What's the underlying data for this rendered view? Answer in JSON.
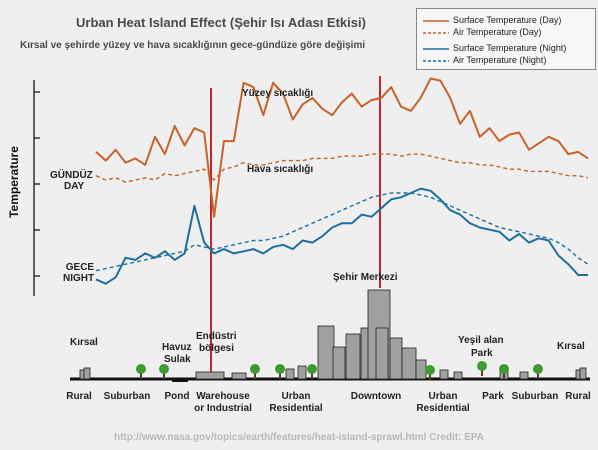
{
  "title": "Urban Heat Island Effect (Şehir Isı Adası Etkisi)",
  "subtitle": "Kırsal ve şehirde yüzey ve hava sıcaklığının gece-gündüze göre değişimi",
  "ylabel": "Temperature",
  "day_label": {
    "tr": "GÜNDÜZ",
    "en": "DAY"
  },
  "night_label": {
    "tr": "GECE",
    "en": "NIGHT"
  },
  "legend": [
    {
      "label": "Surface Temperature (Day)",
      "color": "#c8622a",
      "dash": false
    },
    {
      "label": "Air Temperature  (Day)",
      "color": "#c8622a",
      "dash": true
    },
    {
      "label": "Surface Temperature (Night)",
      "color": "#1f6e9e",
      "dash": false
    },
    {
      "label": "Air Temperature (Night)",
      "color": "#1f6e9e",
      "dash": true
    }
  ],
  "annotations": {
    "surface_day": "Yüzey sıcaklığı",
    "air_day": "Hava sıcaklığı",
    "downtown_tr": "Şehir Merkezi",
    "industrial_tr": [
      "Endüstri",
      "bölgesi"
    ],
    "pond_tr": [
      "Havuz",
      "Sulak"
    ],
    "rural_left_tr": "Kırsal",
    "rural_right_tr": "Kırsal",
    "park_tr": [
      "Yeşil alan",
      "Park"
    ]
  },
  "zones": [
    {
      "lines": [
        "Rural"
      ]
    },
    {
      "lines": [
        "Suburban"
      ]
    },
    {
      "lines": [
        "Pond"
      ]
    },
    {
      "lines": [
        "Warehouse",
        "or Industrial"
      ]
    },
    {
      "lines": [
        "Urban",
        "Residential"
      ]
    },
    {
      "lines": [
        "Downtown"
      ]
    },
    {
      "lines": [
        "Urban",
        "Residential"
      ]
    },
    {
      "lines": [
        "Park"
      ]
    },
    {
      "lines": [
        "Suburban"
      ]
    },
    {
      "lines": [
        "Rural"
      ]
    }
  ],
  "credit": "http://www.nasa.gov/topics/earth/features/heat-island-sprawl.html Credit: EPA",
  "colors": {
    "day": "#c8622a",
    "night": "#1f6e9e",
    "marker": "#c0282a",
    "buildings": "#a0a0a0"
  },
  "chart_data": {
    "type": "line",
    "title": "Urban Heat Island Effect (Şehir Isı Adası Etkisi)",
    "ylabel": "Temperature",
    "xlabel": "",
    "x_categories": [
      "Rural",
      "Suburban",
      "Pond",
      "Warehouse or Industrial",
      "Urban Residential",
      "Downtown",
      "Urban Residential",
      "Park",
      "Suburban",
      "Rural"
    ],
    "x": [
      0,
      2,
      4,
      6,
      8,
      10,
      12,
      14,
      16,
      18,
      20,
      22,
      24,
      26,
      28,
      30,
      32,
      34,
      36,
      38,
      40,
      42,
      44,
      46,
      48,
      50,
      52,
      54,
      56,
      58,
      60,
      62,
      64,
      66,
      68,
      70,
      72,
      74,
      76,
      78,
      80,
      82,
      84,
      86,
      88,
      90,
      92,
      94,
      96,
      98,
      100
    ],
    "ylim": [
      0,
      100
    ],
    "series": [
      {
        "name": "Surface Temperature (Day)",
        "values": [
          63,
          59,
          64,
          58,
          60,
          57,
          70,
          62,
          75,
          66,
          74,
          72,
          33,
          68,
          68,
          95,
          93,
          80,
          95,
          90,
          78,
          85,
          88,
          83,
          80,
          86,
          90,
          84,
          87,
          88,
          93,
          84,
          82,
          88,
          97,
          96,
          88,
          76,
          82,
          70,
          74,
          68,
          71,
          72,
          64,
          67,
          70,
          68,
          62,
          63,
          60
        ]
      },
      {
        "name": "Air Temperature  (Day)",
        "values": [
          52,
          50,
          51,
          49,
          50,
          51,
          50,
          53,
          52,
          53,
          54,
          55,
          50,
          55,
          56,
          58,
          57,
          57,
          58,
          59,
          59,
          59,
          60,
          60,
          60,
          61,
          61,
          61,
          62,
          62,
          62,
          61,
          62,
          62,
          61,
          60,
          59,
          58,
          58,
          57,
          57,
          56,
          55,
          55,
          54,
          54,
          54,
          53,
          52,
          52,
          51
        ]
      },
      {
        "name": "Surface Temperature (Night)",
        "values": [
          4,
          2,
          5,
          14,
          13,
          16,
          14,
          17,
          13,
          16,
          38,
          21,
          16,
          18,
          16,
          17,
          18,
          16,
          19,
          20,
          18,
          22,
          21,
          24,
          28,
          30,
          30,
          34,
          33,
          37,
          41,
          42,
          44,
          46,
          45,
          41,
          36,
          34,
          30,
          28,
          27,
          26,
          22,
          25,
          21,
          23,
          22,
          15,
          11,
          6,
          6
        ]
      },
      {
        "name": "Air Temperature (Night)",
        "values": [
          8,
          9,
          10,
          11,
          12,
          13,
          14,
          15,
          16,
          17,
          20,
          19,
          18,
          19,
          20,
          21,
          22,
          22,
          23,
          24,
          26,
          28,
          30,
          32,
          34,
          36,
          38,
          40,
          42,
          43,
          44,
          44,
          44,
          43,
          42,
          40,
          38,
          36,
          34,
          32,
          30,
          28,
          27,
          26,
          25,
          24,
          23,
          21,
          18,
          14,
          11
        ]
      }
    ]
  }
}
